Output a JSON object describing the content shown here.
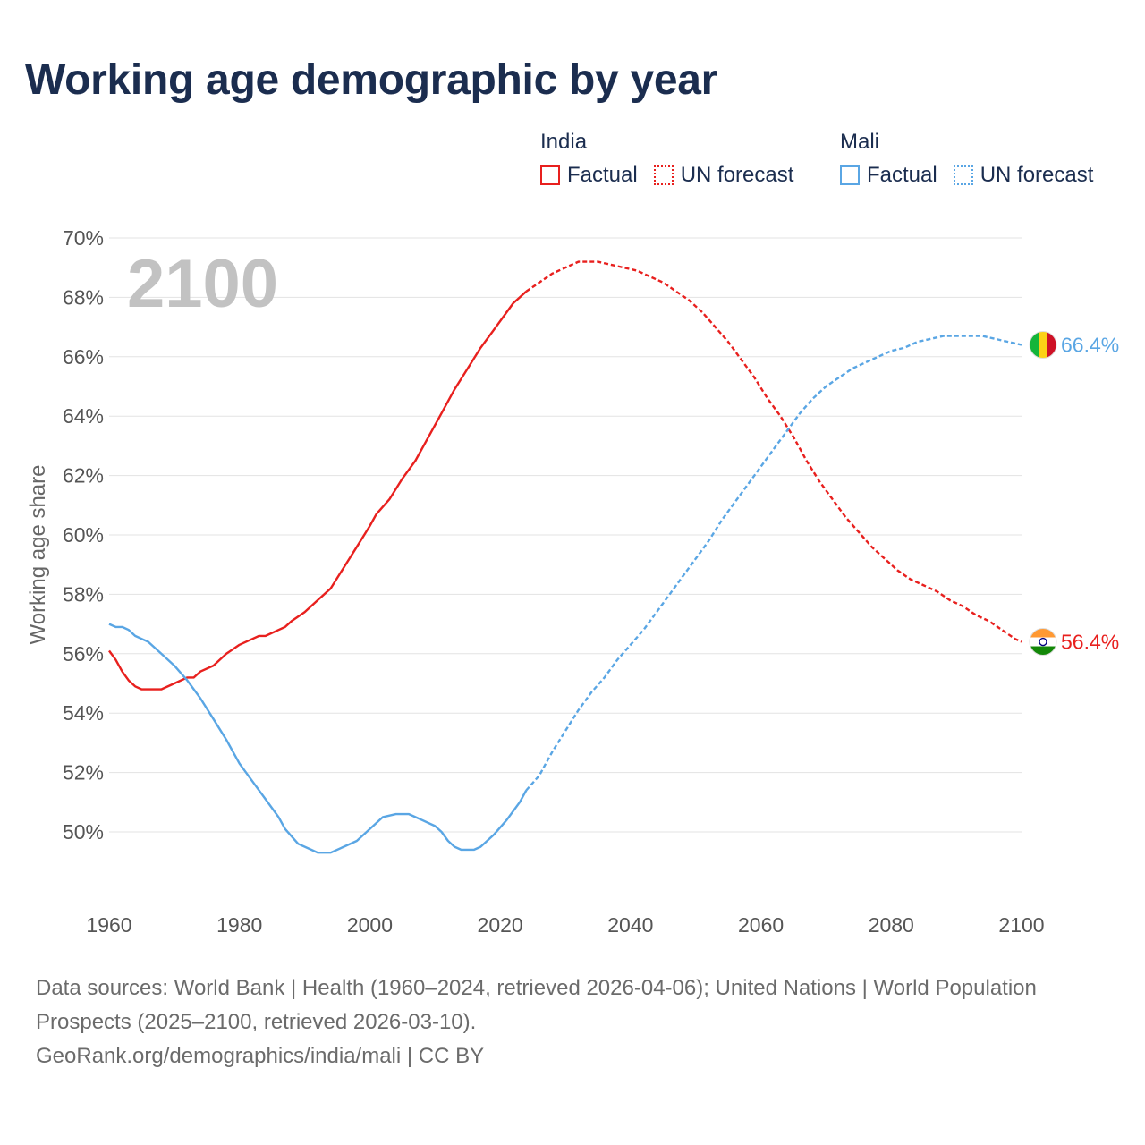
{
  "title": "Working age demographic by year",
  "legend": {
    "groups": [
      {
        "name": "India",
        "factual_label": "Factual",
        "forecast_label": "UN forecast",
        "color": "#e8201e"
      },
      {
        "name": "Mali",
        "factual_label": "Factual",
        "forecast_label": "UN forecast",
        "color": "#5aa6e4"
      }
    ]
  },
  "source": {
    "line1": "Data sources: World Bank | Health (1960–2024, retrieved 2026-04-06); United Nations | World Population Prospects (2025–2100, retrieved 2026-03-10).",
    "line2": "GeoRank.org/demographics/india/mali | CC BY"
  },
  "chart_data": {
    "type": "line",
    "title": "Working age demographic by year",
    "year_label": "2100",
    "xlabel": "",
    "ylabel": "Working age share",
    "xlim": [
      1960,
      2100
    ],
    "ylim": [
      47.5,
      70
    ],
    "x_ticks": [
      1960,
      1980,
      2000,
      2020,
      2040,
      2060,
      2080,
      2100
    ],
    "x_tick_labels": [
      "1960",
      "1980",
      "2000",
      "2020",
      "2040",
      "2060",
      "2080",
      "2100"
    ],
    "y_ticks": [
      50,
      52,
      54,
      56,
      58,
      60,
      62,
      64,
      66,
      68,
      70
    ],
    "y_tick_labels": [
      "50%",
      "52%",
      "54%",
      "56%",
      "58%",
      "60%",
      "62%",
      "64%",
      "66%",
      "68%",
      "70%"
    ],
    "grid": true,
    "forecast_start_year": 2024,
    "series": [
      {
        "name": "India",
        "color": "#e8201e",
        "flag": "india-flag",
        "end_label": "56.4%",
        "points": [
          [
            1960,
            56.1
          ],
          [
            1961,
            55.8
          ],
          [
            1962,
            55.4
          ],
          [
            1963,
            55.1
          ],
          [
            1964,
            54.9
          ],
          [
            1965,
            54.8
          ],
          [
            1966,
            54.8
          ],
          [
            1968,
            54.8
          ],
          [
            1970,
            55.0
          ],
          [
            1972,
            55.2
          ],
          [
            1973,
            55.2
          ],
          [
            1974,
            55.4
          ],
          [
            1976,
            55.6
          ],
          [
            1978,
            56.0
          ],
          [
            1980,
            56.3
          ],
          [
            1982,
            56.5
          ],
          [
            1983,
            56.6
          ],
          [
            1984,
            56.6
          ],
          [
            1986,
            56.8
          ],
          [
            1987,
            56.9
          ],
          [
            1988,
            57.1
          ],
          [
            1990,
            57.4
          ],
          [
            1992,
            57.8
          ],
          [
            1994,
            58.2
          ],
          [
            1996,
            58.9
          ],
          [
            1998,
            59.6
          ],
          [
            2000,
            60.3
          ],
          [
            2001,
            60.7
          ],
          [
            2003,
            61.2
          ],
          [
            2005,
            61.9
          ],
          [
            2007,
            62.5
          ],
          [
            2009,
            63.3
          ],
          [
            2011,
            64.1
          ],
          [
            2013,
            64.9
          ],
          [
            2015,
            65.6
          ],
          [
            2017,
            66.3
          ],
          [
            2019,
            66.9
          ],
          [
            2021,
            67.5
          ],
          [
            2022,
            67.8
          ],
          [
            2024,
            68.2
          ],
          [
            2026,
            68.5
          ],
          [
            2028,
            68.8
          ],
          [
            2030,
            69.0
          ],
          [
            2032,
            69.2
          ],
          [
            2034,
            69.2
          ],
          [
            2035,
            69.2
          ],
          [
            2037,
            69.1
          ],
          [
            2039,
            69.0
          ],
          [
            2041,
            68.9
          ],
          [
            2043,
            68.7
          ],
          [
            2045,
            68.5
          ],
          [
            2047,
            68.2
          ],
          [
            2049,
            67.9
          ],
          [
            2051,
            67.5
          ],
          [
            2053,
            67.0
          ],
          [
            2055,
            66.5
          ],
          [
            2057,
            65.9
          ],
          [
            2059,
            65.3
          ],
          [
            2061,
            64.6
          ],
          [
            2063,
            64.0
          ],
          [
            2065,
            63.3
          ],
          [
            2067,
            62.5
          ],
          [
            2069,
            61.8
          ],
          [
            2071,
            61.2
          ],
          [
            2073,
            60.6
          ],
          [
            2075,
            60.1
          ],
          [
            2077,
            59.6
          ],
          [
            2079,
            59.2
          ],
          [
            2081,
            58.8
          ],
          [
            2083,
            58.5
          ],
          [
            2085,
            58.3
          ],
          [
            2087,
            58.1
          ],
          [
            2089,
            57.8
          ],
          [
            2091,
            57.6
          ],
          [
            2093,
            57.3
          ],
          [
            2095,
            57.1
          ],
          [
            2097,
            56.8
          ],
          [
            2099,
            56.5
          ],
          [
            2100,
            56.4
          ]
        ]
      },
      {
        "name": "Mali",
        "color": "#5aa6e4",
        "flag": "mali-flag",
        "end_label": "66.4%",
        "points": [
          [
            1960,
            57.0
          ],
          [
            1961,
            56.9
          ],
          [
            1962,
            56.9
          ],
          [
            1963,
            56.8
          ],
          [
            1964,
            56.6
          ],
          [
            1965,
            56.5
          ],
          [
            1966,
            56.4
          ],
          [
            1968,
            56.0
          ],
          [
            1970,
            55.6
          ],
          [
            1972,
            55.1
          ],
          [
            1974,
            54.5
          ],
          [
            1976,
            53.8
          ],
          [
            1978,
            53.1
          ],
          [
            1980,
            52.3
          ],
          [
            1982,
            51.7
          ],
          [
            1984,
            51.1
          ],
          [
            1986,
            50.5
          ],
          [
            1987,
            50.1
          ],
          [
            1989,
            49.6
          ],
          [
            1991,
            49.4
          ],
          [
            1992,
            49.3
          ],
          [
            1994,
            49.3
          ],
          [
            1996,
            49.5
          ],
          [
            1998,
            49.7
          ],
          [
            2000,
            50.1
          ],
          [
            2002,
            50.5
          ],
          [
            2004,
            50.6
          ],
          [
            2006,
            50.6
          ],
          [
            2007,
            50.5
          ],
          [
            2008,
            50.4
          ],
          [
            2010,
            50.2
          ],
          [
            2011,
            50.0
          ],
          [
            2012,
            49.7
          ],
          [
            2013,
            49.5
          ],
          [
            2014,
            49.4
          ],
          [
            2016,
            49.4
          ],
          [
            2017,
            49.5
          ],
          [
            2019,
            49.9
          ],
          [
            2021,
            50.4
          ],
          [
            2023,
            51.0
          ],
          [
            2024,
            51.4
          ],
          [
            2026,
            51.9
          ],
          [
            2028,
            52.7
          ],
          [
            2030,
            53.4
          ],
          [
            2032,
            54.1
          ],
          [
            2034,
            54.7
          ],
          [
            2036,
            55.2
          ],
          [
            2038,
            55.8
          ],
          [
            2040,
            56.3
          ],
          [
            2042,
            56.8
          ],
          [
            2044,
            57.4
          ],
          [
            2046,
            58.0
          ],
          [
            2048,
            58.6
          ],
          [
            2050,
            59.2
          ],
          [
            2052,
            59.8
          ],
          [
            2054,
            60.5
          ],
          [
            2056,
            61.1
          ],
          [
            2058,
            61.7
          ],
          [
            2060,
            62.3
          ],
          [
            2062,
            62.9
          ],
          [
            2064,
            63.5
          ],
          [
            2066,
            64.1
          ],
          [
            2068,
            64.6
          ],
          [
            2070,
            65.0
          ],
          [
            2072,
            65.3
          ],
          [
            2074,
            65.6
          ],
          [
            2076,
            65.8
          ],
          [
            2078,
            66.0
          ],
          [
            2080,
            66.2
          ],
          [
            2082,
            66.3
          ],
          [
            2084,
            66.5
          ],
          [
            2086,
            66.6
          ],
          [
            2088,
            66.7
          ],
          [
            2090,
            66.7
          ],
          [
            2092,
            66.7
          ],
          [
            2094,
            66.7
          ],
          [
            2096,
            66.6
          ],
          [
            2098,
            66.5
          ],
          [
            2100,
            66.4
          ]
        ]
      }
    ]
  }
}
